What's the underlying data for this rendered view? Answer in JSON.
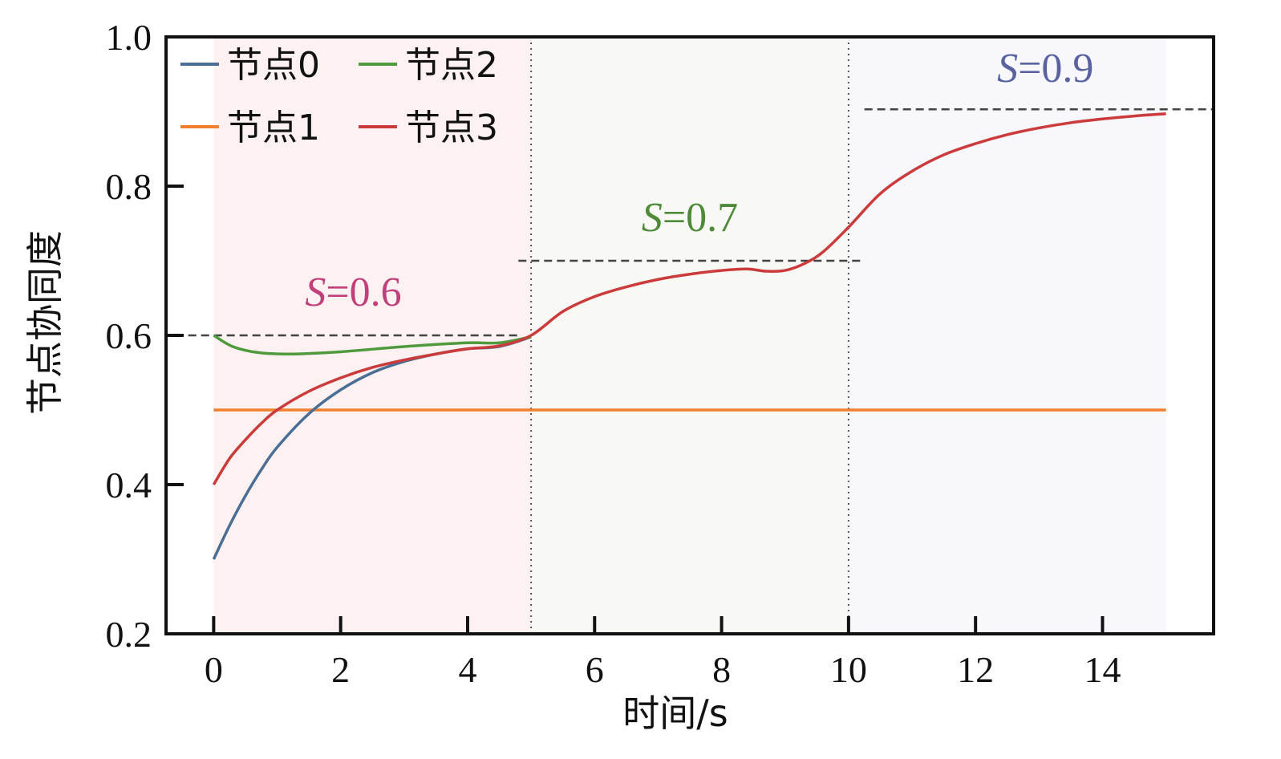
{
  "chart_data": {
    "type": "line",
    "xlabel": "时间/s",
    "ylabel": "节点协同度",
    "xlim": [
      -0.75,
      15.75
    ],
    "ylim": [
      0.2,
      1.0
    ],
    "xticks": [
      "0",
      "2",
      "4",
      "6",
      "8",
      "10",
      "12",
      "14"
    ],
    "yticks": [
      "0.2",
      "0.4",
      "0.6",
      "0.8",
      "1.0"
    ],
    "legend_position": "top-left",
    "grid": false,
    "phases": [
      {
        "x": [
          0,
          5
        ],
        "target": 0.6,
        "label_var": "S",
        "label_value": "=0.6",
        "label_color": "#c0407a",
        "bg": "#fdf1f1",
        "label_x": 2.2,
        "label_y": 0.64
      },
      {
        "x": [
          5,
          10
        ],
        "target": 0.7,
        "label_var": "S",
        "label_value": "=0.7",
        "label_color": "#4e8a3a",
        "bg": "#f8f8f4",
        "label_x": 7.5,
        "label_y": 0.74
      },
      {
        "x": [
          10,
          15
        ],
        "target": 0.9,
        "label_var": "S",
        "label_value": "=0.9",
        "label_color": "#5a63a0",
        "bg": "#f7f7fc",
        "label_x": 13.1,
        "label_y": 0.94
      }
    ],
    "target_lines": [
      {
        "x": [
          -0.4,
          4.8
        ],
        "y": 0.6
      },
      {
        "x": [
          4.8,
          10.25
        ],
        "y": 0.7
      },
      {
        "x": [
          10.25,
          15.75
        ],
        "y": 0.903
      }
    ],
    "vlines": [
      5,
      10
    ],
    "series": [
      {
        "name": "节点0",
        "color": "#4a6e94",
        "x": [
          0,
          0.25,
          0.5,
          0.75,
          1,
          1.5,
          2,
          2.5,
          3,
          3.5,
          4,
          4.5,
          5
        ],
        "y": [
          0.3,
          0.345,
          0.385,
          0.42,
          0.45,
          0.495,
          0.527,
          0.55,
          0.565,
          0.575,
          0.582,
          0.585,
          0.598
        ]
      },
      {
        "name": "节点1",
        "color": "#f07f2e",
        "x": [
          0,
          15
        ],
        "y": [
          0.5,
          0.5
        ]
      },
      {
        "name": "节点2",
        "color": "#4e9a3c",
        "x": [
          0,
          0.3,
          0.7,
          1.2,
          2,
          3,
          4,
          4.5,
          5
        ],
        "y": [
          0.6,
          0.585,
          0.577,
          0.575,
          0.578,
          0.585,
          0.59,
          0.59,
          0.598
        ]
      },
      {
        "name": "节点3",
        "color": "#cc3b3b",
        "x": [
          0,
          0.25,
          0.5,
          0.75,
          1,
          1.5,
          2,
          2.5,
          3,
          3.5,
          4,
          4.5,
          5,
          5.5,
          6,
          6.5,
          7,
          7.5,
          8,
          8.4,
          8.7,
          9,
          9.3,
          9.6,
          10,
          10.5,
          11,
          11.5,
          12,
          12.5,
          13,
          13.5,
          14,
          14.5,
          15
        ],
        "y": [
          0.4,
          0.435,
          0.46,
          0.482,
          0.5,
          0.525,
          0.543,
          0.557,
          0.567,
          0.575,
          0.582,
          0.586,
          0.6,
          0.632,
          0.652,
          0.665,
          0.675,
          0.682,
          0.687,
          0.689,
          0.686,
          0.687,
          0.696,
          0.712,
          0.745,
          0.79,
          0.82,
          0.842,
          0.857,
          0.869,
          0.878,
          0.885,
          0.89,
          0.894,
          0.897
        ]
      }
    ]
  }
}
